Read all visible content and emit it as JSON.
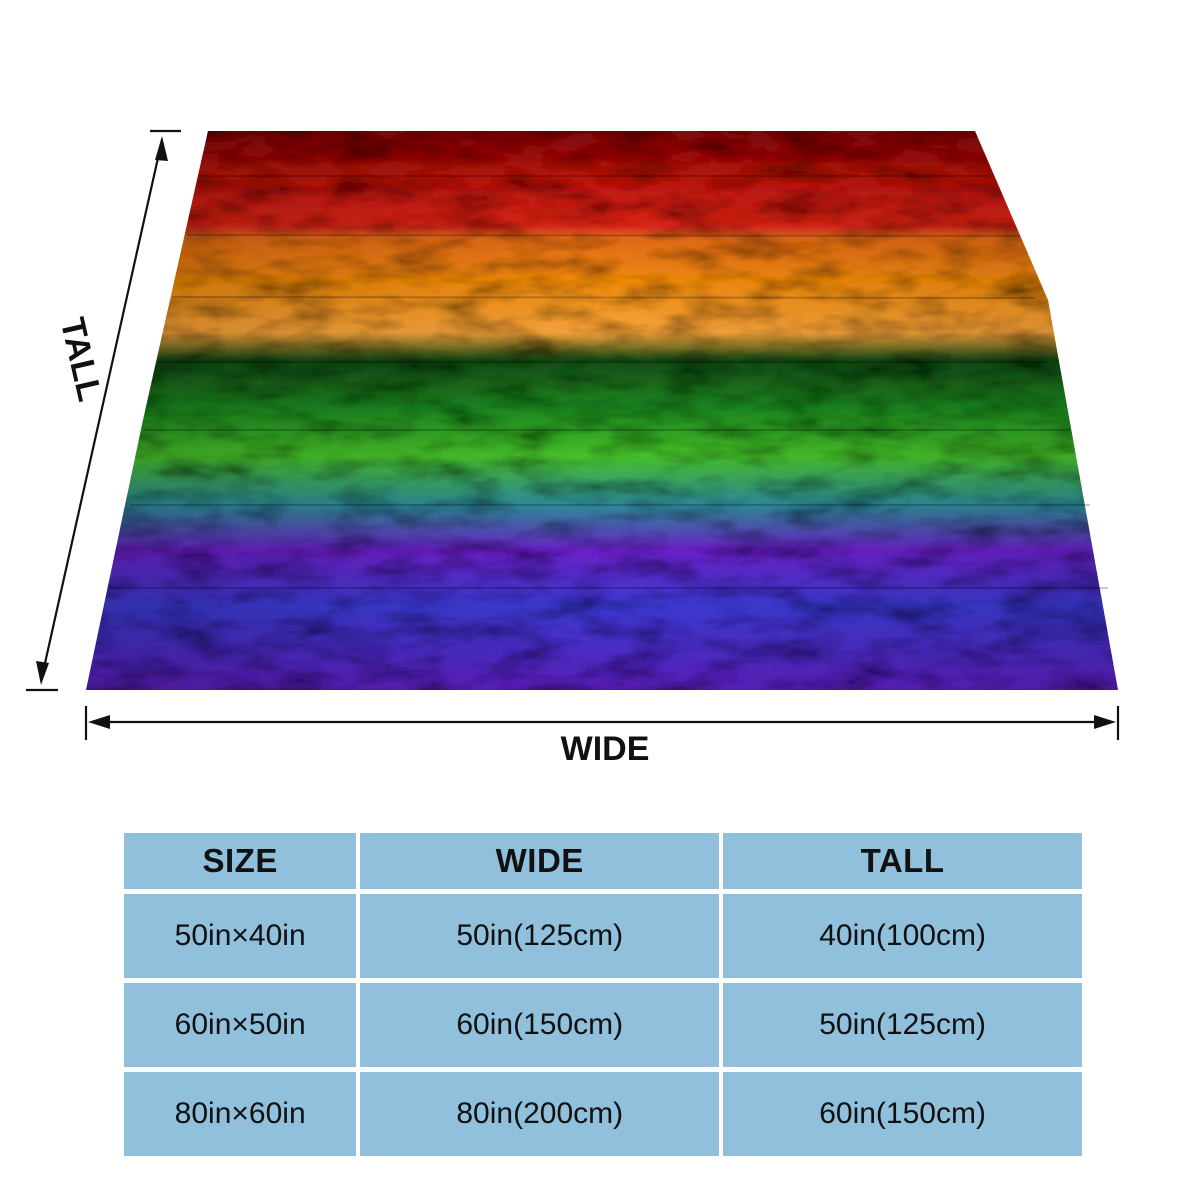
{
  "dimensions": {
    "tall_label": "TALL",
    "wide_label": "WIDE"
  },
  "blanket": {
    "pattern": "rainbow tie-dye stripes",
    "stripe_colors": [
      "#c41a12",
      "#f08a10",
      "#1f8a22",
      "#3b3ad0",
      "#6a22c8"
    ]
  },
  "size_table": {
    "headers": [
      "SIZE",
      "WIDE",
      "TALL"
    ],
    "rows": [
      [
        "50in×40in",
        "50in(125cm)",
        "40in(100cm)"
      ],
      [
        "60in×50in",
        "60in(150cm)",
        "50in(125cm)"
      ],
      [
        "80in×60in",
        "80in(200cm)",
        "60in(150cm)"
      ]
    ],
    "cell_color": "#90c0dc"
  }
}
